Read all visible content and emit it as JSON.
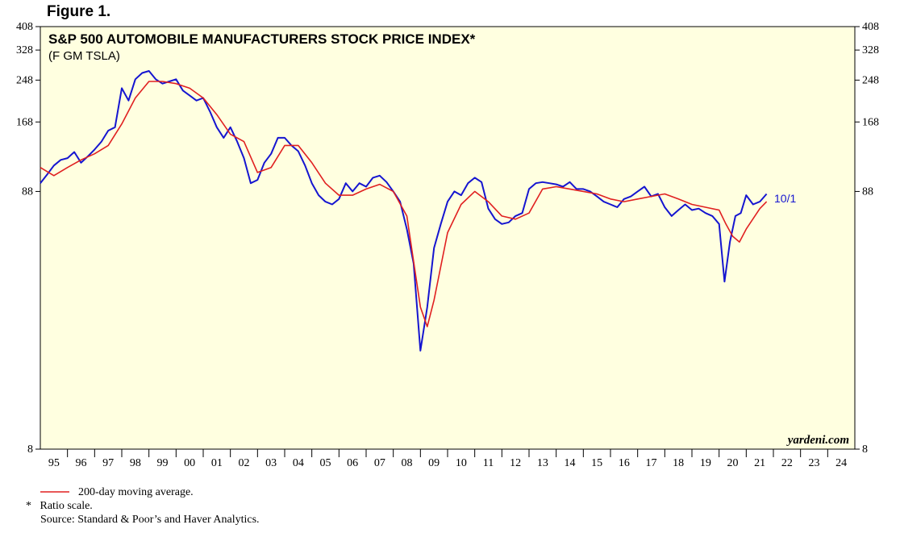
{
  "figure_label": "Figure 1.",
  "chart_data": {
    "type": "line",
    "title": "S&P 500 AUTOMOBILE MANUFACTURERS STOCK PRICE INDEX*",
    "subtitle": "(F GM TSLA)",
    "scale": "log",
    "ylim": [
      8,
      408
    ],
    "y_ticks": [
      8,
      88,
      168,
      248,
      328,
      408
    ],
    "x_ticks": [
      "95",
      "96",
      "97",
      "98",
      "99",
      "00",
      "01",
      "02",
      "03",
      "04",
      "05",
      "06",
      "07",
      "08",
      "09",
      "10",
      "11",
      "12",
      "13",
      "14",
      "15",
      "16",
      "17",
      "18",
      "19",
      "20",
      "21",
      "22",
      "23",
      "24"
    ],
    "xlim": [
      1995.0,
      2025.0
    ],
    "grid": false,
    "legend_position": "bottom-left",
    "end_label": "10/1",
    "watermark": "yardeni.com",
    "series": [
      {
        "color": "#1515d0",
        "x": [
          1995.0,
          1995.25,
          1995.5,
          1995.75,
          1996.0,
          1996.25,
          1996.5,
          1996.75,
          1997.0,
          1997.25,
          1997.5,
          1997.75,
          1998.0,
          1998.25,
          1998.5,
          1998.75,
          1999.0,
          1999.25,
          1999.5,
          1999.75,
          2000.0,
          2000.25,
          2000.5,
          2000.75,
          2001.0,
          2001.25,
          2001.5,
          2001.75,
          2002.0,
          2002.25,
          2002.5,
          2002.75,
          2003.0,
          2003.25,
          2003.5,
          2003.75,
          2004.0,
          2004.25,
          2004.5,
          2004.75,
          2005.0,
          2005.25,
          2005.5,
          2005.75,
          2006.0,
          2006.25,
          2006.5,
          2006.75,
          2007.0,
          2007.25,
          2007.5,
          2007.75,
          2008.0,
          2008.25,
          2008.5,
          2008.75,
          2009.0,
          2009.25,
          2009.5,
          2009.75,
          2010.0,
          2010.25,
          2010.5,
          2010.75,
          2011.0,
          2011.25,
          2011.5,
          2011.75,
          2012.0,
          2012.25,
          2012.5,
          2012.75,
          2013.0,
          2013.25,
          2013.5,
          2013.75,
          2014.0,
          2014.25,
          2014.5,
          2014.75,
          2015.0,
          2015.25,
          2015.5,
          2015.75,
          2016.0,
          2016.25,
          2016.5,
          2016.75,
          2017.0,
          2017.25,
          2017.5,
          2017.75,
          2018.0,
          2018.25,
          2018.5,
          2018.75,
          2019.0,
          2019.25,
          2019.5,
          2019.75,
          2020.0,
          2020.2,
          2020.4,
          2020.6,
          2020.8,
          2021.0,
          2021.25,
          2021.5,
          2021.75
        ],
        "values": [
          95,
          103,
          112,
          118,
          120,
          127,
          115,
          122,
          130,
          140,
          155,
          160,
          230,
          205,
          250,
          265,
          270,
          250,
          240,
          245,
          250,
          225,
          215,
          205,
          210,
          185,
          160,
          145,
          160,
          140,
          120,
          95,
          98,
          115,
          125,
          145,
          145,
          135,
          128,
          112,
          95,
          85,
          80,
          78,
          82,
          95,
          88,
          95,
          92,
          100,
          102,
          96,
          88,
          80,
          62,
          45,
          20,
          30,
          52,
          65,
          80,
          88,
          85,
          95,
          100,
          96,
          75,
          68,
          65,
          66,
          70,
          72,
          90,
          95,
          96,
          95,
          94,
          92,
          96,
          90,
          90,
          88,
          84,
          80,
          78,
          76,
          82,
          84,
          88,
          92,
          84,
          86,
          76,
          70,
          74,
          78,
          74,
          75,
          72,
          70,
          65,
          38,
          55,
          70,
          72,
          85,
          78,
          80,
          86
        ]
      },
      {
        "name": "200-day moving average.",
        "color": "#e02020",
        "x": [
          1995.0,
          1995.5,
          1996.0,
          1996.5,
          1997.0,
          1997.5,
          1998.0,
          1998.5,
          1999.0,
          1999.5,
          2000.0,
          2000.5,
          2001.0,
          2001.5,
          2002.0,
          2002.5,
          2003.0,
          2003.5,
          2004.0,
          2004.5,
          2005.0,
          2005.5,
          2006.0,
          2006.5,
          2007.0,
          2007.5,
          2008.0,
          2008.5,
          2009.0,
          2009.25,
          2009.5,
          2010.0,
          2010.5,
          2011.0,
          2011.5,
          2012.0,
          2012.5,
          2013.0,
          2013.5,
          2014.0,
          2014.5,
          2015.0,
          2015.5,
          2016.0,
          2016.5,
          2017.0,
          2017.5,
          2018.0,
          2018.5,
          2019.0,
          2019.5,
          2020.0,
          2020.25,
          2020.5,
          2020.75,
          2021.0,
          2021.5,
          2021.75
        ],
        "values": [
          110,
          102,
          110,
          118,
          125,
          135,
          165,
          210,
          245,
          245,
          240,
          230,
          210,
          180,
          150,
          140,
          105,
          110,
          135,
          135,
          115,
          95,
          85,
          85,
          90,
          94,
          88,
          70,
          30,
          25,
          32,
          60,
          78,
          88,
          80,
          70,
          68,
          72,
          90,
          92,
          90,
          88,
          86,
          82,
          80,
          82,
          84,
          86,
          82,
          78,
          76,
          74,
          65,
          58,
          55,
          62,
          75,
          80
        ]
      }
    ]
  },
  "footer": {
    "legend_label": "200-day moving average.",
    "note": "*   Ratio scale.",
    "source": "Source: Standard & Poor’s and Haver Analytics."
  }
}
